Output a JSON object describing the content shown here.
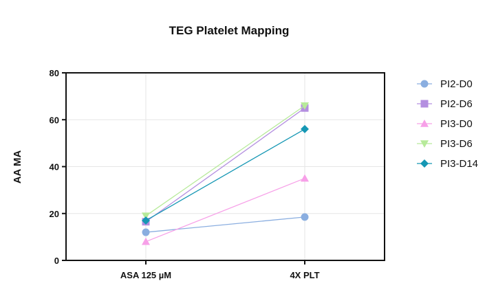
{
  "chart_data": {
    "type": "line",
    "title": "TEG Platelet Mapping",
    "xlabel": "",
    "ylabel": "AA MA",
    "categories": [
      "ASA 125 µM",
      "4X PLT"
    ],
    "ylim": [
      0,
      80
    ],
    "yticks": [
      0,
      20,
      40,
      60,
      80
    ],
    "grid": true,
    "legend_position": "right",
    "series": [
      {
        "name": "PI2-D0",
        "values": [
          12,
          18.5
        ],
        "color": "#8aaee0",
        "marker": "circle"
      },
      {
        "name": "PI2-D6",
        "values": [
          16.5,
          65
        ],
        "color": "#b48fe0",
        "marker": "square"
      },
      {
        "name": "PI3-D0",
        "values": [
          8,
          35
        ],
        "color": "#f7a0e8",
        "marker": "triangle-up"
      },
      {
        "name": "PI3-D6",
        "values": [
          19,
          66
        ],
        "color": "#b7ea9a",
        "marker": "triangle-down"
      },
      {
        "name": "PI3-D14",
        "values": [
          17,
          56
        ],
        "color": "#1597b4",
        "marker": "diamond"
      }
    ]
  }
}
